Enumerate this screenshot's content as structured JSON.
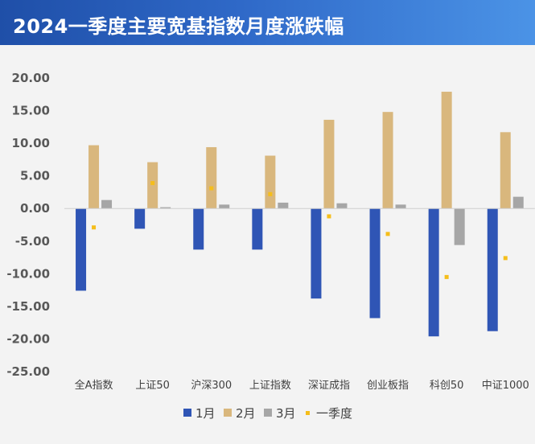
{
  "header": {
    "title": "2024一季度主要宽基指数月度涨跌幅"
  },
  "colors": {
    "jan": "#2f55b5",
    "feb": "#d9b77d",
    "mar": "#a6a6a6",
    "q1": "#f5be1b"
  },
  "chart_data": {
    "type": "bar",
    "categories": [
      "全A指数",
      "上证50",
      "沪深300",
      "上证指数",
      "深证成指",
      "创业板指",
      "科创50",
      "中证1000"
    ],
    "series": [
      {
        "name": "1月",
        "values": [
          -12.6,
          -3.1,
          -6.3,
          -6.3,
          -13.8,
          -16.8,
          -19.6,
          -18.8
        ]
      },
      {
        "name": "2月",
        "values": [
          9.7,
          7.1,
          9.4,
          8.1,
          13.6,
          14.8,
          17.9,
          11.7
        ]
      },
      {
        "name": "3月",
        "values": [
          1.3,
          0.2,
          0.6,
          0.9,
          0.8,
          0.6,
          -5.6,
          1.8
        ]
      },
      {
        "name": "一季度",
        "marker": "point",
        "values": [
          -2.9,
          3.9,
          3.1,
          2.2,
          -1.2,
          -3.9,
          -10.5,
          -7.6
        ]
      }
    ],
    "ylim": [
      -25,
      20
    ],
    "yticks": [
      "20.00",
      "15.00",
      "10.00",
      "5.00",
      "0.00",
      "-5.00",
      "-10.00",
      "-15.00",
      "-20.00",
      "-25.00"
    ],
    "ytick_values": [
      20,
      15,
      10,
      5,
      0,
      -5,
      -10,
      -15,
      -20,
      -25
    ],
    "grid": false,
    "legend_position": "bottom"
  }
}
